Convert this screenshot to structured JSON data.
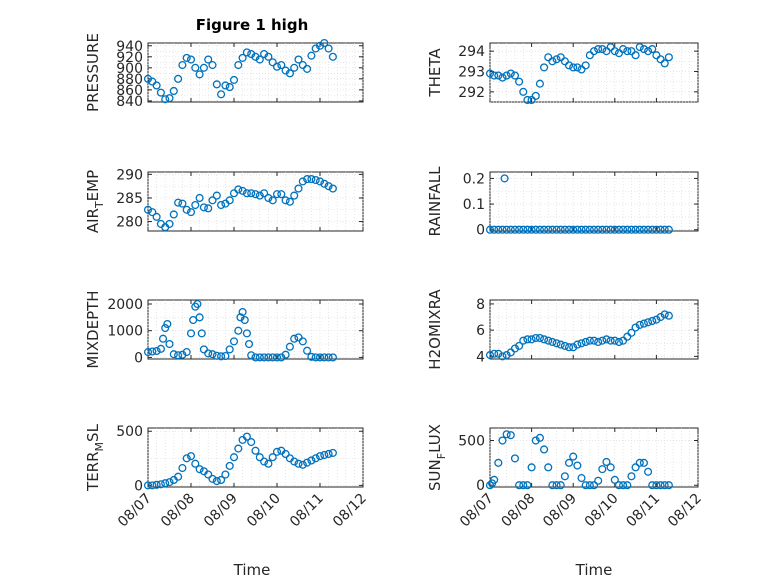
{
  "figure": {
    "title": "Figure 1 high",
    "xlabel": "Time",
    "marker_color": "#0072BD"
  },
  "chart_data": [
    {
      "type": "scatter",
      "name": "PRESSURE",
      "ylabel_main": "PRESSURE",
      "ylabel_sub": "",
      "xlim": [
        0,
        5
      ],
      "ylim": [
        838,
        945
      ],
      "yticks": [
        840,
        860,
        880,
        900,
        920,
        940
      ],
      "ytick_labels": [
        "840",
        "860",
        "880",
        "900",
        "920",
        "940"
      ],
      "xticks": [
        0,
        1,
        2,
        3,
        4,
        5
      ],
      "xtick_labels": [],
      "x": [
        0.0,
        0.1,
        0.2,
        0.3,
        0.4,
        0.5,
        0.6,
        0.7,
        0.8,
        0.9,
        1.0,
        1.1,
        1.2,
        1.3,
        1.4,
        1.5,
        1.6,
        1.7,
        1.8,
        1.9,
        2.0,
        2.1,
        2.2,
        2.3,
        2.4,
        2.5,
        2.6,
        2.7,
        2.8,
        2.9,
        3.0,
        3.1,
        3.2,
        3.3,
        3.4,
        3.5,
        3.6,
        3.7,
        3.8,
        3.9,
        4.0,
        4.1,
        4.2,
        4.3
      ],
      "y": [
        880,
        875,
        868,
        855,
        843,
        845,
        858,
        880,
        905,
        918,
        915,
        900,
        888,
        900,
        915,
        905,
        870,
        852,
        868,
        865,
        878,
        905,
        918,
        928,
        925,
        920,
        915,
        925,
        920,
        910,
        902,
        905,
        895,
        890,
        900,
        915,
        905,
        898,
        922,
        935,
        940,
        945,
        935,
        920
      ]
    },
    {
      "type": "scatter",
      "name": "THETA",
      "ylabel_main": "THETA",
      "ylabel_sub": "",
      "xlim": [
        0,
        5
      ],
      "ylim": [
        291.5,
        294.4
      ],
      "yticks": [
        292,
        293,
        294
      ],
      "ytick_labels": [
        "292",
        "293",
        "294"
      ],
      "xticks": [
        0,
        1,
        2,
        3,
        4,
        5
      ],
      "xtick_labels": [],
      "x": [
        0.0,
        0.1,
        0.2,
        0.3,
        0.4,
        0.5,
        0.6,
        0.7,
        0.8,
        0.9,
        1.0,
        1.1,
        1.2,
        1.3,
        1.4,
        1.5,
        1.6,
        1.7,
        1.8,
        1.9,
        2.0,
        2.1,
        2.2,
        2.3,
        2.4,
        2.5,
        2.6,
        2.7,
        2.8,
        2.9,
        3.0,
        3.1,
        3.2,
        3.3,
        3.4,
        3.5,
        3.6,
        3.7,
        3.8,
        3.9,
        4.0,
        4.1,
        4.2,
        4.3
      ],
      "y": [
        292.9,
        292.8,
        292.8,
        292.7,
        292.8,
        292.9,
        292.8,
        292.5,
        292.0,
        291.6,
        291.6,
        291.8,
        292.4,
        293.2,
        293.7,
        293.5,
        293.6,
        293.7,
        293.5,
        293.3,
        293.2,
        293.2,
        293.1,
        293.3,
        293.8,
        294.0,
        294.1,
        294.1,
        294.0,
        294.2,
        294.0,
        293.9,
        294.1,
        294.0,
        294.0,
        293.8,
        294.2,
        294.1,
        294.0,
        294.1,
        293.8,
        293.6,
        293.4,
        293.7
      ]
    },
    {
      "type": "scatter",
      "name": "AIR_TEMP",
      "ylabel_main": "AIR",
      "ylabel_sub": "T",
      "ylabel_post": "EMP",
      "xlim": [
        0,
        5
      ],
      "ylim": [
        278,
        290.5
      ],
      "yticks": [
        280,
        285,
        290
      ],
      "ytick_labels": [
        "280",
        "285",
        "290"
      ],
      "xticks": [
        0,
        1,
        2,
        3,
        4,
        5
      ],
      "xtick_labels": [],
      "x": [
        0.0,
        0.1,
        0.2,
        0.3,
        0.4,
        0.5,
        0.6,
        0.7,
        0.8,
        0.9,
        1.0,
        1.1,
        1.2,
        1.3,
        1.4,
        1.5,
        1.6,
        1.7,
        1.8,
        1.9,
        2.0,
        2.1,
        2.2,
        2.3,
        2.4,
        2.5,
        2.6,
        2.7,
        2.8,
        2.9,
        3.0,
        3.1,
        3.2,
        3.3,
        3.4,
        3.5,
        3.6,
        3.7,
        3.8,
        3.9,
        4.0,
        4.1,
        4.2,
        4.3
      ],
      "y": [
        282.5,
        282.0,
        281.0,
        279.5,
        278.8,
        279.5,
        281.5,
        284.0,
        283.8,
        282.5,
        282.0,
        283.5,
        285.0,
        283.0,
        282.8,
        284.5,
        285.5,
        283.5,
        283.8,
        284.5,
        286.0,
        286.8,
        286.5,
        286.0,
        286.0,
        285.8,
        285.5,
        286.0,
        285.0,
        284.5,
        285.8,
        285.8,
        284.5,
        284.2,
        285.5,
        287.0,
        288.5,
        289.0,
        289.0,
        288.8,
        288.5,
        288.0,
        287.5,
        287.0
      ]
    },
    {
      "type": "scatter",
      "name": "RAINFALL",
      "ylabel_main": "RAINFALL",
      "ylabel_sub": "",
      "xlim": [
        0,
        5
      ],
      "ylim": [
        -0.005,
        0.225
      ],
      "yticks": [
        0,
        0.1,
        0.2
      ],
      "ytick_labels": [
        "0",
        "0.1",
        "0.2"
      ],
      "xticks": [
        0,
        1,
        2,
        3,
        4,
        5
      ],
      "xtick_labels": [],
      "x": [
        0.0,
        0.1,
        0.2,
        0.3,
        0.35,
        0.4,
        0.5,
        0.6,
        0.7,
        0.8,
        0.9,
        1.0,
        1.1,
        1.2,
        1.3,
        1.4,
        1.5,
        1.6,
        1.7,
        1.8,
        1.9,
        2.0,
        2.1,
        2.2,
        2.3,
        2.4,
        2.5,
        2.6,
        2.7,
        2.8,
        2.9,
        3.0,
        3.1,
        3.2,
        3.3,
        3.4,
        3.5,
        3.6,
        3.7,
        3.8,
        3.9,
        4.0,
        4.1,
        4.2,
        4.3
      ],
      "y": [
        0,
        0,
        0,
        0,
        0.2,
        0,
        0,
        0,
        0,
        0,
        0,
        0,
        0,
        0,
        0,
        0,
        0,
        0,
        0,
        0,
        0,
        0,
        0,
        0,
        0,
        0,
        0,
        0,
        0,
        0,
        0,
        0,
        0,
        0,
        0,
        0,
        0,
        0,
        0,
        0,
        0,
        0,
        0,
        0,
        0
      ]
    },
    {
      "type": "scatter",
      "name": "MIXDEPTH",
      "ylabel_main": "MIXDEPTH",
      "ylabel_sub": "",
      "xlim": [
        0,
        5
      ],
      "ylim": [
        -60,
        2150
      ],
      "yticks": [
        0,
        1000,
        2000
      ],
      "ytick_labels": [
        "0",
        "1000",
        "2000"
      ],
      "xticks": [
        0,
        1,
        2,
        3,
        4,
        5
      ],
      "xtick_labels": [],
      "x": [
        0.0,
        0.1,
        0.2,
        0.3,
        0.35,
        0.4,
        0.45,
        0.5,
        0.6,
        0.7,
        0.8,
        0.9,
        1.0,
        1.05,
        1.1,
        1.15,
        1.2,
        1.25,
        1.3,
        1.4,
        1.5,
        1.6,
        1.7,
        1.8,
        1.9,
        2.0,
        2.1,
        2.15,
        2.2,
        2.25,
        2.3,
        2.35,
        2.4,
        2.5,
        2.6,
        2.7,
        2.8,
        2.9,
        3.0,
        3.1,
        3.2,
        3.3,
        3.4,
        3.5,
        3.6,
        3.7,
        3.8,
        3.9,
        4.0,
        4.1,
        4.2,
        4.3
      ],
      "y": [
        200,
        220,
        240,
        320,
        700,
        1100,
        1250,
        500,
        120,
        80,
        100,
        200,
        900,
        1400,
        1900,
        2000,
        1500,
        900,
        300,
        150,
        120,
        60,
        40,
        50,
        300,
        600,
        1000,
        1500,
        1700,
        1400,
        900,
        500,
        80,
        0,
        0,
        0,
        0,
        0,
        0,
        0,
        100,
        400,
        700,
        750,
        600,
        250,
        20,
        0,
        0,
        0,
        0,
        0
      ]
    },
    {
      "type": "scatter",
      "name": "H2OMIXRA",
      "ylabel_main": "H2OMIXRA",
      "ylabel_sub": "",
      "xlim": [
        0,
        5
      ],
      "ylim": [
        3.8,
        8.3
      ],
      "yticks": [
        4,
        6,
        8
      ],
      "ytick_labels": [
        "4",
        "6",
        "8"
      ],
      "xticks": [
        0,
        1,
        2,
        3,
        4,
        5
      ],
      "xtick_labels": [],
      "x": [
        0.0,
        0.1,
        0.2,
        0.3,
        0.4,
        0.5,
        0.6,
        0.7,
        0.8,
        0.9,
        1.0,
        1.1,
        1.2,
        1.3,
        1.4,
        1.5,
        1.6,
        1.7,
        1.8,
        1.9,
        2.0,
        2.1,
        2.2,
        2.3,
        2.4,
        2.5,
        2.6,
        2.7,
        2.8,
        2.9,
        3.0,
        3.1,
        3.2,
        3.3,
        3.4,
        3.5,
        3.6,
        3.7,
        3.8,
        3.9,
        4.0,
        4.1,
        4.2,
        4.3
      ],
      "y": [
        4.1,
        4.2,
        4.2,
        4.0,
        4.1,
        4.3,
        4.6,
        4.8,
        5.2,
        5.3,
        5.3,
        5.4,
        5.4,
        5.3,
        5.2,
        5.1,
        5.0,
        4.9,
        4.8,
        4.7,
        4.7,
        4.9,
        5.0,
        5.1,
        5.2,
        5.2,
        5.1,
        5.2,
        5.3,
        5.2,
        5.2,
        5.1,
        5.2,
        5.5,
        5.8,
        6.2,
        6.4,
        6.5,
        6.6,
        6.7,
        6.8,
        7.0,
        7.2,
        7.1
      ]
    },
    {
      "type": "scatter",
      "name": "TERR_MSL",
      "ylabel_main": "TERR",
      "ylabel_sub": "M",
      "ylabel_post": "SL",
      "xlim": [
        0,
        5
      ],
      "ylim": [
        -15,
        530
      ],
      "yticks": [
        0,
        500
      ],
      "ytick_labels": [
        "0",
        "500"
      ],
      "xticks": [
        0,
        1,
        2,
        3,
        4,
        5
      ],
      "xtick_labels": [
        "08/07",
        "08/08",
        "08/09",
        "08/10",
        "08/11",
        "08/12"
      ],
      "x": [
        0.0,
        0.1,
        0.2,
        0.3,
        0.4,
        0.5,
        0.6,
        0.7,
        0.8,
        0.9,
        1.0,
        1.1,
        1.2,
        1.3,
        1.4,
        1.5,
        1.6,
        1.7,
        1.8,
        1.9,
        2.0,
        2.1,
        2.2,
        2.3,
        2.4,
        2.5,
        2.6,
        2.7,
        2.8,
        2.9,
        3.0,
        3.1,
        3.2,
        3.3,
        3.4,
        3.5,
        3.6,
        3.7,
        3.8,
        3.9,
        4.0,
        4.1,
        4.2,
        4.3
      ],
      "y": [
        0,
        0,
        5,
        10,
        20,
        30,
        50,
        80,
        160,
        250,
        270,
        200,
        150,
        130,
        100,
        60,
        40,
        50,
        100,
        180,
        260,
        340,
        420,
        450,
        400,
        320,
        260,
        220,
        200,
        260,
        310,
        320,
        290,
        250,
        220,
        200,
        190,
        210,
        230,
        250,
        270,
        280,
        290,
        300
      ]
    },
    {
      "type": "scatter",
      "name": "SUN_FLUX",
      "ylabel_main": "SUN",
      "ylabel_sub": "F",
      "ylabel_post": "LUX",
      "xlim": [
        0,
        5
      ],
      "ylim": [
        -20,
        640
      ],
      "yticks": [
        0,
        500
      ],
      "ytick_labels": [
        "0",
        "500"
      ],
      "xticks": [
        0,
        1,
        2,
        3,
        4,
        5
      ],
      "xtick_labels": [
        "08/07",
        "08/08",
        "08/09",
        "08/10",
        "08/11",
        "08/12"
      ],
      "x": [
        0.0,
        0.05,
        0.1,
        0.2,
        0.3,
        0.4,
        0.5,
        0.6,
        0.7,
        0.8,
        0.9,
        1.0,
        1.1,
        1.2,
        1.3,
        1.4,
        1.5,
        1.6,
        1.7,
        1.8,
        1.9,
        2.0,
        2.1,
        2.2,
        2.3,
        2.4,
        2.5,
        2.6,
        2.7,
        2.8,
        2.9,
        3.0,
        3.1,
        3.2,
        3.3,
        3.4,
        3.5,
        3.6,
        3.7,
        3.8,
        3.9,
        4.0,
        4.1,
        4.2,
        4.3
      ],
      "y": [
        0,
        20,
        60,
        250,
        500,
        570,
        560,
        300,
        0,
        0,
        0,
        200,
        500,
        530,
        400,
        200,
        0,
        0,
        0,
        100,
        250,
        320,
        220,
        80,
        0,
        0,
        0,
        50,
        180,
        260,
        200,
        60,
        0,
        0,
        0,
        100,
        200,
        250,
        250,
        150,
        0,
        0,
        0,
        0,
        0
      ]
    }
  ]
}
